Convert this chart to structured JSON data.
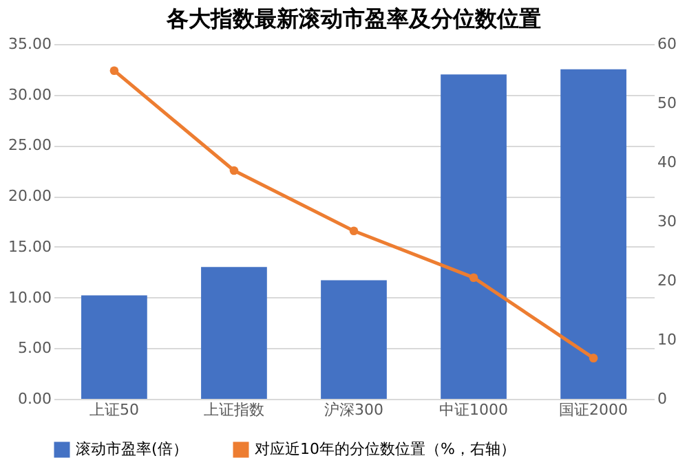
{
  "chart_data": {
    "type": "bar",
    "title": "各大指数最新滚动市盈率及分位数位置",
    "categories": [
      "上证50",
      "上证指数",
      "沪深300",
      "中证1000",
      "国证2000"
    ],
    "series": [
      {
        "name": "滚动市盈率(倍）",
        "color": "#4472c4",
        "values": [
          10.2,
          13.0,
          11.7,
          32.0,
          32.5
        ]
      },
      {
        "name": "对应近10年的分位数位置（%，右轴）",
        "color": "#ed7d31",
        "type": "line",
        "axis": "y2",
        "marker": "circle",
        "values": [
          55.5,
          38.6,
          28.4,
          20.5,
          6.9
        ]
      }
    ],
    "ylim": [
      0,
      35
    ],
    "yticks": [
      {
        "value": 0,
        "label": "0.00"
      },
      {
        "value": 5,
        "label": "5.00"
      },
      {
        "value": 10,
        "label": "10.00"
      },
      {
        "value": 15,
        "label": "15.00"
      },
      {
        "value": 20,
        "label": "20.00"
      },
      {
        "value": 25,
        "label": "25.00"
      },
      {
        "value": 30,
        "label": "30.00"
      },
      {
        "value": 35,
        "label": "35.00"
      }
    ],
    "y2lim": [
      0,
      60
    ],
    "y2ticks": [
      0,
      10,
      20,
      30,
      40,
      50,
      60
    ],
    "grid": "y",
    "legend": "bottom"
  }
}
